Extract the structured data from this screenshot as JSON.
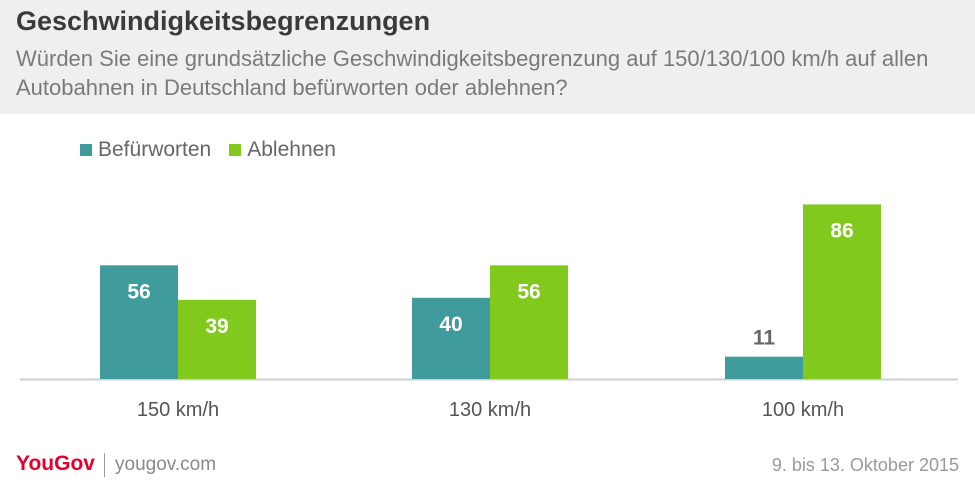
{
  "header": {
    "title": "Geschwindigkeitsbegrenzungen",
    "subtitle": "Würden Sie eine grundsätzliche Geschwindigkeitsbegrenzung auf 150/130/100 km/h auf allen Autobahnen in Deutschland befürworten oder ablehnen?"
  },
  "footer": {
    "logo": "YouGov",
    "url": "yougov.com",
    "date": "9. bis 13. Oktober 2015"
  },
  "colors": {
    "befuerworten": "#3f9b9c",
    "ablehnen": "#82c91e",
    "header_bg": "#efefef"
  },
  "chart_data": {
    "type": "bar",
    "categories": [
      "150 km/h",
      "130 km/h",
      "100 km/h"
    ],
    "series": [
      {
        "name": "Befürworten",
        "values": [
          56,
          40,
          11
        ]
      },
      {
        "name": "Ablehnen",
        "values": [
          39,
          56,
          86
        ]
      }
    ],
    "ylim": [
      0,
      90
    ],
    "legend": "top-left",
    "grid": false
  }
}
